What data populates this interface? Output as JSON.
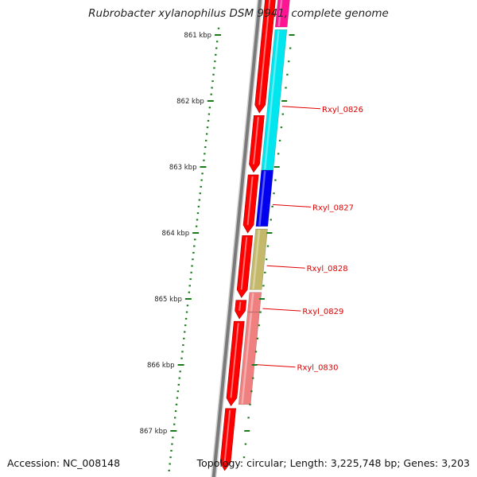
{
  "title": "Rubrobacter xylanophilus DSM 9941, complete genome",
  "footer": {
    "accession": "Accession: NC_008148",
    "topology": "Topology: circular; Length: 3,225,748 bp; Genes: 3,203"
  },
  "colors": {
    "backbone": "#7a7a7a",
    "strand_gene": "#ff0000",
    "tick": "#1a7a1a",
    "label": "#e00000"
  },
  "kbp_ticks": [
    {
      "kbp": 861,
      "label": "861 kbp"
    },
    {
      "kbp": 862,
      "label": "862 kbp"
    },
    {
      "kbp": 863,
      "label": "863 kbp"
    },
    {
      "kbp": 864,
      "label": "864 kbp"
    },
    {
      "kbp": 865,
      "label": "865 kbp"
    },
    {
      "kbp": 866,
      "label": "866 kbp"
    },
    {
      "kbp": 867,
      "label": "867 kbp"
    }
  ],
  "genes": [
    {
      "name": "",
      "start_kbp": 860.28,
      "end_kbp": 860.88,
      "color": "#ff1493"
    },
    {
      "name": "Rxyl_0826",
      "start_kbp": 860.92,
      "end_kbp": 863.05,
      "color": "#00e5ee"
    },
    {
      "name": "Rxyl_0827",
      "start_kbp": 863.05,
      "end_kbp": 863.9,
      "color": "#0000ee"
    },
    {
      "name": "Rxyl_0828",
      "start_kbp": 863.94,
      "end_kbp": 864.86,
      "color": "#c4b86a"
    },
    {
      "name": "Rxyl_0829",
      "start_kbp": 864.9,
      "end_kbp": 865.2,
      "color": "#f08080"
    },
    {
      "name": "Rxyl_0830",
      "start_kbp": 865.2,
      "end_kbp": 866.6,
      "color": "#f08080"
    }
  ],
  "strand_arrows": [
    {
      "start_kbp": 860.28,
      "end_kbp": 862.18
    },
    {
      "start_kbp": 862.22,
      "end_kbp": 863.08
    },
    {
      "start_kbp": 863.12,
      "end_kbp": 864.0
    },
    {
      "start_kbp": 864.04,
      "end_kbp": 864.98
    },
    {
      "start_kbp": 865.02,
      "end_kbp": 865.3
    },
    {
      "start_kbp": 865.34,
      "end_kbp": 866.62
    },
    {
      "start_kbp": 866.66,
      "end_kbp": 867.6
    }
  ]
}
